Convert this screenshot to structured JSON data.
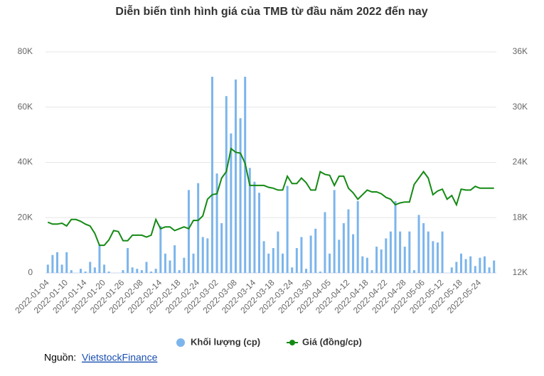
{
  "chart_data": {
    "type": "bar-line",
    "title": "Diễn biến tình hình giá của TMB từ đầu năm 2022 đến nay",
    "categories": [
      "2022-01-04",
      null,
      null,
      null,
      "2022-01-10",
      null,
      null,
      null,
      "2022-01-14",
      null,
      null,
      null,
      "2022-01-20",
      null,
      null,
      null,
      "2022-01-26",
      null,
      null,
      null,
      "2022-02-08",
      null,
      null,
      null,
      "2022-02-14",
      null,
      null,
      null,
      "2022-02-18",
      null,
      null,
      null,
      "2022-02-24",
      null,
      null,
      null,
      "2022-03-02",
      null,
      null,
      null,
      "2022-03-08",
      null,
      null,
      null,
      "2022-03-14",
      null,
      null,
      null,
      "2022-03-18",
      null,
      null,
      null,
      "2022-03-24",
      null,
      null,
      null,
      "2022-03-30",
      null,
      null,
      null,
      "2022-04-05",
      null,
      null,
      null,
      "2022-04-12",
      null,
      null,
      null,
      "2022-04-18",
      null,
      null,
      null,
      "2022-04-22",
      null,
      null,
      null,
      "2022-04-28",
      null,
      null,
      null,
      "2022-05-06",
      null,
      null,
      null,
      "2022-05-12",
      null,
      null,
      null,
      "2022-05-18",
      null,
      null,
      null,
      "2022-05-24",
      null,
      null,
      null
    ],
    "series": [
      {
        "name": "Khối lượng (cp)",
        "color": "#7cb5ec",
        "axis": "y",
        "values": [
          3000,
          6500,
          7500,
          3000,
          7500,
          1000,
          0,
          1500,
          500,
          4000,
          2000,
          10000,
          3000,
          500,
          0,
          0,
          1000,
          9000,
          2000,
          1500,
          1000,
          4000,
          500,
          1500,
          17000,
          7000,
          4500,
          10000,
          1000,
          5500,
          30000,
          7000,
          32500,
          13000,
          12500,
          71000,
          36000,
          18000,
          64000,
          50500,
          70000,
          56000,
          71000,
          38000,
          33000,
          29000,
          11500,
          7000,
          9000,
          15000,
          7000,
          31500,
          2000,
          9000,
          13000,
          1500,
          13500,
          16000,
          500,
          22000,
          7000,
          30000,
          12000,
          18000,
          23000,
          14000,
          26000,
          6000,
          5500,
          1000,
          9500,
          8500,
          12500,
          15000,
          26000,
          15000,
          9500,
          15000,
          1000,
          21000,
          18000,
          15000,
          11500,
          11000,
          15000,
          0,
          2000,
          4000,
          7000,
          5000,
          6000,
          2500,
          5500,
          6000,
          2000,
          4500
        ]
      },
      {
        "name": "Giá (đồng/cp)",
        "color": "#148a14",
        "axis": "y2",
        "values": [
          17500,
          17300,
          17300,
          17400,
          17100,
          17800,
          17800,
          17600,
          17300,
          17100,
          16300,
          15000,
          15000,
          15600,
          16600,
          16500,
          15500,
          15500,
          16100,
          16100,
          16100,
          15900,
          16100,
          17800,
          16800,
          17000,
          17000,
          16600,
          16800,
          17000,
          16800,
          17700,
          17700,
          18200,
          20000,
          20500,
          20600,
          22300,
          23000,
          25500,
          25100,
          25000,
          23900,
          21500,
          21500,
          21500,
          21500,
          21300,
          21200,
          21000,
          21000,
          22500,
          21700,
          21700,
          22300,
          21800,
          21000,
          21000,
          23000,
          22700,
          22600,
          21500,
          22500,
          22500,
          21200,
          20700,
          20000,
          20500,
          21000,
          20800,
          20800,
          20600,
          20200,
          20000,
          19400,
          19600,
          19700,
          19700,
          21600,
          22300,
          23000,
          22300,
          20500,
          20900,
          21100,
          20000,
          20400,
          19400,
          21100,
          21000,
          21000,
          21400,
          21200,
          21200,
          21200,
          21200
        ]
      }
    ],
    "ylim": [
      0,
      80000
    ],
    "yticks": [
      0,
      {
        "value": 20000,
        "label": "20K"
      },
      {
        "value": 40000,
        "label": "40K"
      },
      {
        "value": 60000,
        "label": "60K"
      },
      {
        "value": 80000,
        "label": "80K"
      }
    ],
    "y2lim": [
      12000,
      36000
    ],
    "y2ticks": [
      {
        "value": 12000,
        "label": "12K"
      },
      {
        "value": 18000,
        "label": "18K"
      },
      {
        "value": 24000,
        "label": "24K"
      },
      {
        "value": 30000,
        "label": "30K"
      },
      {
        "value": 36000,
        "label": "36K"
      }
    ],
    "grid": true,
    "legend": "bottom"
  },
  "source": {
    "label": "Nguồn:",
    "link": "VietstockFinance"
  }
}
